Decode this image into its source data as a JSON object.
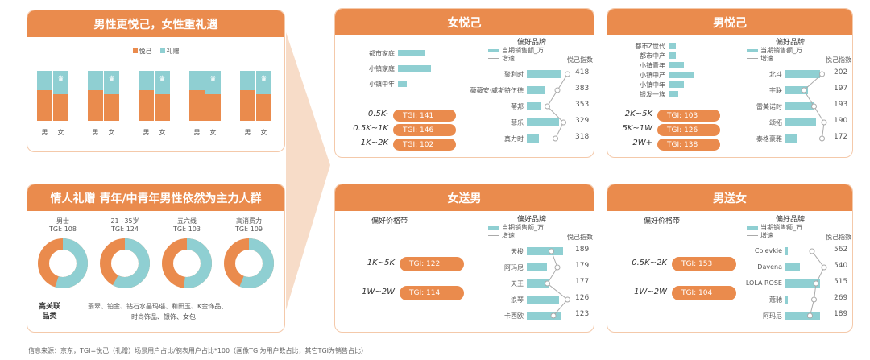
{
  "colors": {
    "orange": "#ea8b4d",
    "teal": "#8fcfd2",
    "bg_light": "#fdf3ec"
  },
  "left_top": {
    "title": "男性更悦己，女性重礼遇",
    "legend": [
      {
        "label": "悦己",
        "color": "#ea8b4d"
      },
      {
        "label": "礼赠",
        "color": "#8fcfd2"
      }
    ],
    "pairs": [
      {
        "male": "男",
        "female": "女",
        "male_yueji": 0.62,
        "female_yueji": 0.53
      },
      {
        "male": "男",
        "female": "女",
        "male_yueji": 0.62,
        "female_yueji": 0.53
      },
      {
        "male": "男",
        "female": "女",
        "male_yueji": 0.62,
        "female_yueji": 0.53
      },
      {
        "male": "男",
        "female": "女",
        "male_yueji": 0.62,
        "female_yueji": 0.53
      },
      {
        "male": "男",
        "female": "女",
        "male_yueji": 0.62,
        "female_yueji": 0.53
      }
    ]
  },
  "left_bottom": {
    "title": "情人礼赠 青年/中青年男性依然为主力人群",
    "groups": [
      {
        "name": "男士",
        "tgi": "TGI: 108",
        "share": 0.55
      },
      {
        "name": "21~35岁",
        "tgi": "TGI: 124",
        "share": 0.58
      },
      {
        "name": "五六线",
        "tgi": "TGI: 103",
        "share": 0.52
      },
      {
        "name": "高消费力",
        "tgi": "TGI: 109",
        "share": 0.56
      }
    ],
    "assoc_label": "高关联\n品类",
    "assoc_line1": "翡翠、铂金、钻石水晶玛瑙、和田玉、K金饰品、",
    "assoc_line2": "时尚饰品、银饰、女包"
  },
  "nvyueji": {
    "title": "女悦己",
    "segments": [
      {
        "label": "都市家庭",
        "value": 0.75
      },
      {
        "label": "小镇家庭",
        "value": 0.9
      },
      {
        "label": "小镇中年",
        "value": 0.25
      }
    ],
    "tgi": [
      {
        "label": "0.5K-",
        "text": "TGI: 141"
      },
      {
        "label": "0.5K~1K",
        "text": "TGI: 146"
      },
      {
        "label": "1K~2K",
        "text": "TGI: 102"
      }
    ],
    "brand_title": "偏好品牌",
    "legend_sales": "当期销售额_万",
    "legend_growth": "增速",
    "index_title": "悦己指数",
    "brands": [
      {
        "name": "聚利时",
        "sales": 0.85,
        "index": "418",
        "growth": 0.85
      },
      {
        "name": "薇薇安·威斯特伍德",
        "sales": 0.45,
        "index": "383",
        "growth": 0.6
      },
      {
        "name": "蒂邦",
        "sales": 0.35,
        "index": "353",
        "growth": 0.35
      },
      {
        "name": "菲乐",
        "sales": 0.8,
        "index": "329",
        "growth": 0.75
      },
      {
        "name": "真力时",
        "sales": 0.3,
        "index": "318",
        "growth": 0.55
      }
    ]
  },
  "nanyueji": {
    "title": "男悦己",
    "segments": [
      {
        "label": "都市Z世代",
        "value": 0.25
      },
      {
        "label": "都市中产",
        "value": 0.25
      },
      {
        "label": "小镇青年",
        "value": 0.55
      },
      {
        "label": "小镇中产",
        "value": 0.9
      },
      {
        "label": "小镇中年",
        "value": 0.55
      },
      {
        "label": "银发一族",
        "value": 0.35
      }
    ],
    "tgi": [
      {
        "label": "2K~5K",
        "text": "TGI: 103"
      },
      {
        "label": "5K~1W",
        "text": "TGI: 126"
      },
      {
        "label": "2W+",
        "text": "TGI: 138"
      }
    ],
    "brand_title": "偏好品牌",
    "legend_sales": "当期销售额_万",
    "legend_growth": "增速",
    "index_title": "悦己指数",
    "brands": [
      {
        "name": "北斗",
        "sales": 0.85,
        "index": "202",
        "growth": 0.75
      },
      {
        "name": "宇联",
        "sales": 0.55,
        "index": "197",
        "growth": 0.3
      },
      {
        "name": "雷美诺时",
        "sales": 0.7,
        "index": "193",
        "growth": 0.55
      },
      {
        "name": "颂拓",
        "sales": 0.75,
        "index": "190",
        "growth": 0.8
      },
      {
        "name": "泰格豪雅",
        "sales": 0.3,
        "index": "172",
        "growth": 0.75
      }
    ]
  },
  "nvsongnan": {
    "title": "女送男",
    "price_title": "偏好价格带",
    "brand_title": "偏好品牌",
    "legend_sales": "当期销售额_万",
    "legend_growth": "增速",
    "index_title": "悦己指数",
    "tgi": [
      {
        "label": "1K~5K",
        "text": "TGI: 122"
      },
      {
        "label": "1W~2W",
        "text": "TGI: 114"
      }
    ],
    "brands": [
      {
        "name": "天梭",
        "sales": 0.9,
        "index": "189",
        "growth": 0.45
      },
      {
        "name": "阿玛尼",
        "sales": 0.5,
        "index": "179",
        "growth": 0.6
      },
      {
        "name": "天王",
        "sales": 0.55,
        "index": "177",
        "growth": 0.35
      },
      {
        "name": "浪琴",
        "sales": 0.8,
        "index": "126",
        "growth": 0.85
      },
      {
        "name": "卡西欧",
        "sales": 0.85,
        "index": "123",
        "growth": 0.5
      }
    ]
  },
  "nansongnv": {
    "title": "男送女",
    "price_title": "偏好价格带",
    "brand_title": "偏好品牌",
    "legend_sales": "当期销售额_万",
    "legend_growth": "增速",
    "index_title": "悦己指数",
    "tgi": [
      {
        "label": "0.5K~2K",
        "text": "TGI: 153"
      },
      {
        "label": "1W~2W",
        "text": "TGI: 104"
      }
    ],
    "brands": [
      {
        "name": "Colevkie",
        "sales": 0.05,
        "index": "562",
        "growth": 0.5
      },
      {
        "name": "Davena",
        "sales": 0.35,
        "index": "540",
        "growth": 0.8
      },
      {
        "name": "LOLA ROSE",
        "sales": 0.85,
        "index": "515",
        "growth": 0.6
      },
      {
        "name": "蔻驰",
        "sales": 0.05,
        "index": "269",
        "growth": 0.55
      },
      {
        "name": "阿玛尼",
        "sales": 0.85,
        "index": "189",
        "growth": 0.45
      }
    ]
  },
  "footnote": "信息来源：京东，TGI=悦己（礼赠）场景用户占比/腕表用户占比*100（画像TGI为用户数占比，其它TGI为销售占比）"
}
